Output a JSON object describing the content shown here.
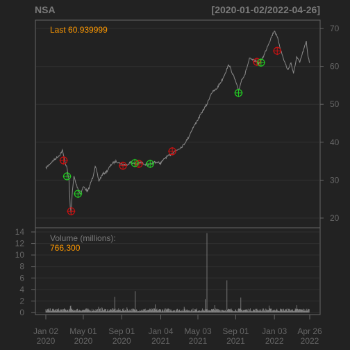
{
  "header": {
    "symbol": "NSA",
    "date_range": "[2020-01-02/2022-04-26]"
  },
  "annotations": {
    "last_label": "Last 60.939999",
    "volume_label": "Volume (millions):",
    "volume_value": "766,300"
  },
  "colors": {
    "background": "#222222",
    "panel_border": "#666666",
    "grid": "#303030",
    "price_line": "#8a8a8a",
    "volume_bars": "#8a8a8a",
    "axis_text": "#666666",
    "title_text": "#7a7a7a",
    "accent": "#ff9900",
    "sell_marker": "#cc1111",
    "buy_marker": "#22cc22"
  },
  "chart_data": [
    {
      "type": "line",
      "title": "NSA",
      "ylim": [
        18,
        72
      ],
      "y_ticks": [
        20,
        30,
        40,
        50,
        60,
        70
      ],
      "x_ticks": [
        {
          "date": "2020-01-02",
          "label": [
            "Jan 02",
            "2020"
          ]
        },
        {
          "date": "2020-05-01",
          "label": [
            "May 01",
            "2020"
          ]
        },
        {
          "date": "2020-09-01",
          "label": [
            "Sep 01",
            "2020"
          ]
        },
        {
          "date": "2021-01-04",
          "label": [
            "Jan 04",
            "2021"
          ]
        },
        {
          "date": "2021-05-03",
          "label": [
            "May 03",
            "2021"
          ]
        },
        {
          "date": "2021-09-01",
          "label": [
            "Sep 01",
            "2021"
          ]
        },
        {
          "date": "2022-01-03",
          "label": [
            "Jan 03",
            "2022"
          ]
        },
        {
          "date": "2022-04-26",
          "label": [
            "Apr 26",
            "2022"
          ]
        }
      ],
      "xlim": [
        "2020-01-02",
        "2022-04-26"
      ],
      "grid": true,
      "series": [
        {
          "points": [
            [
              "2020-01-02",
              33.2
            ],
            [
              "2020-01-15",
              34.3
            ],
            [
              "2020-02-01",
              35.6
            ],
            [
              "2020-02-15",
              36.6
            ],
            [
              "2020-02-24",
              37.8
            ],
            [
              "2020-03-03",
              35.0
            ],
            [
              "2020-03-10",
              33.0
            ],
            [
              "2020-03-16",
              30.0
            ],
            [
              "2020-03-20",
              23.0
            ],
            [
              "2020-03-23",
              21.2
            ],
            [
              "2020-03-26",
              26.0
            ],
            [
              "2020-04-01",
              31.0
            ],
            [
              "2020-04-08",
              29.0
            ],
            [
              "2020-04-15",
              27.5
            ],
            [
              "2020-04-22",
              26.3
            ],
            [
              "2020-05-01",
              28.3
            ],
            [
              "2020-05-15",
              27.0
            ],
            [
              "2020-06-01",
              31.0
            ],
            [
              "2020-06-08",
              33.8
            ],
            [
              "2020-06-20",
              29.8
            ],
            [
              "2020-07-01",
              31.5
            ],
            [
              "2020-07-15",
              32.3
            ],
            [
              "2020-08-01",
              34.4
            ],
            [
              "2020-08-15",
              35.0
            ],
            [
              "2020-09-01",
              34.2
            ],
            [
              "2020-09-15",
              34.0
            ],
            [
              "2020-10-01",
              34.8
            ],
            [
              "2020-10-15",
              34.1
            ],
            [
              "2020-11-01",
              34.7
            ],
            [
              "2020-11-15",
              34.2
            ],
            [
              "2020-12-01",
              34.0
            ],
            [
              "2020-12-15",
              34.8
            ],
            [
              "2021-01-04",
              34.5
            ],
            [
              "2021-01-20",
              36.0
            ],
            [
              "2021-02-01",
              36.5
            ],
            [
              "2021-02-15",
              37.5
            ],
            [
              "2021-03-01",
              38.2
            ],
            [
              "2021-03-15",
              39.0
            ],
            [
              "2021-04-01",
              41.0
            ],
            [
              "2021-04-15",
              43.5
            ],
            [
              "2021-05-03",
              46.0
            ],
            [
              "2021-05-20",
              48.5
            ],
            [
              "2021-06-01",
              50.0
            ],
            [
              "2021-06-15",
              53.0
            ],
            [
              "2021-07-01",
              54.0
            ],
            [
              "2021-07-20",
              56.5
            ],
            [
              "2021-08-10",
              60.5
            ],
            [
              "2021-08-20",
              58.5
            ],
            [
              "2021-09-01",
              56.0
            ],
            [
              "2021-09-10",
              53.5
            ],
            [
              "2021-09-20",
              56.5
            ],
            [
              "2021-10-01",
              58.0
            ],
            [
              "2021-10-15",
              62.0
            ],
            [
              "2021-11-01",
              61.5
            ],
            [
              "2021-11-15",
              60.8
            ],
            [
              "2021-12-01",
              63.0
            ],
            [
              "2021-12-15",
              66.0
            ],
            [
              "2022-01-03",
              69.5
            ],
            [
              "2022-01-15",
              67.0
            ],
            [
              "2022-01-25",
              63.8
            ],
            [
              "2022-02-01",
              62.0
            ],
            [
              "2022-02-15",
              59.0
            ],
            [
              "2022-02-25",
              61.0
            ],
            [
              "2022-03-05",
              58.0
            ],
            [
              "2022-03-15",
              62.5
            ],
            [
              "2022-03-25",
              61.0
            ],
            [
              "2022-04-05",
              64.0
            ],
            [
              "2022-04-15",
              66.5
            ],
            [
              "2022-04-20",
              63.0
            ],
            [
              "2022-04-26",
              60.94
            ]
          ]
        }
      ],
      "sell_signals": [
        [
          "2020-02-28",
          35.2
        ],
        [
          "2020-03-23",
          21.8
        ],
        [
          "2020-09-05",
          33.8
        ],
        [
          "2020-10-26",
          34.3
        ],
        [
          "2021-02-10",
          37.6
        ],
        [
          "2021-11-08",
          61.2
        ],
        [
          "2022-01-12",
          64.1
        ]
      ],
      "buy_signals": [
        [
          "2020-03-10",
          31.0
        ],
        [
          "2020-04-14",
          26.4
        ],
        [
          "2020-10-13",
          34.5
        ],
        [
          "2020-12-01",
          34.3
        ],
        [
          "2021-09-10",
          53.0
        ],
        [
          "2021-11-21",
          61.0
        ]
      ]
    },
    {
      "type": "bar",
      "title": "Volume (millions):",
      "ylim": [
        0,
        14
      ],
      "y_ticks": [
        0,
        2,
        4,
        6,
        8,
        10,
        12,
        14
      ],
      "baseline_volume": 0.45,
      "spikes": [
        [
          "2020-03-19",
          1.1
        ],
        [
          "2020-03-23",
          1.2
        ],
        [
          "2020-06-19",
          1.0
        ],
        [
          "2020-07-01",
          0.9
        ],
        [
          "2020-08-10",
          2.7
        ],
        [
          "2020-09-18",
          0.9
        ],
        [
          "2020-10-15",
          3.7
        ],
        [
          "2020-12-18",
          1.4
        ],
        [
          "2021-03-19",
          1.0
        ],
        [
          "2021-05-27",
          2.3
        ],
        [
          "2021-06-01",
          13.8
        ],
        [
          "2021-06-25",
          1.3
        ],
        [
          "2021-08-05",
          5.6
        ],
        [
          "2021-09-17",
          2.6
        ],
        [
          "2021-12-17",
          1.2
        ],
        [
          "2022-03-18",
          1.3
        ]
      ]
    }
  ]
}
